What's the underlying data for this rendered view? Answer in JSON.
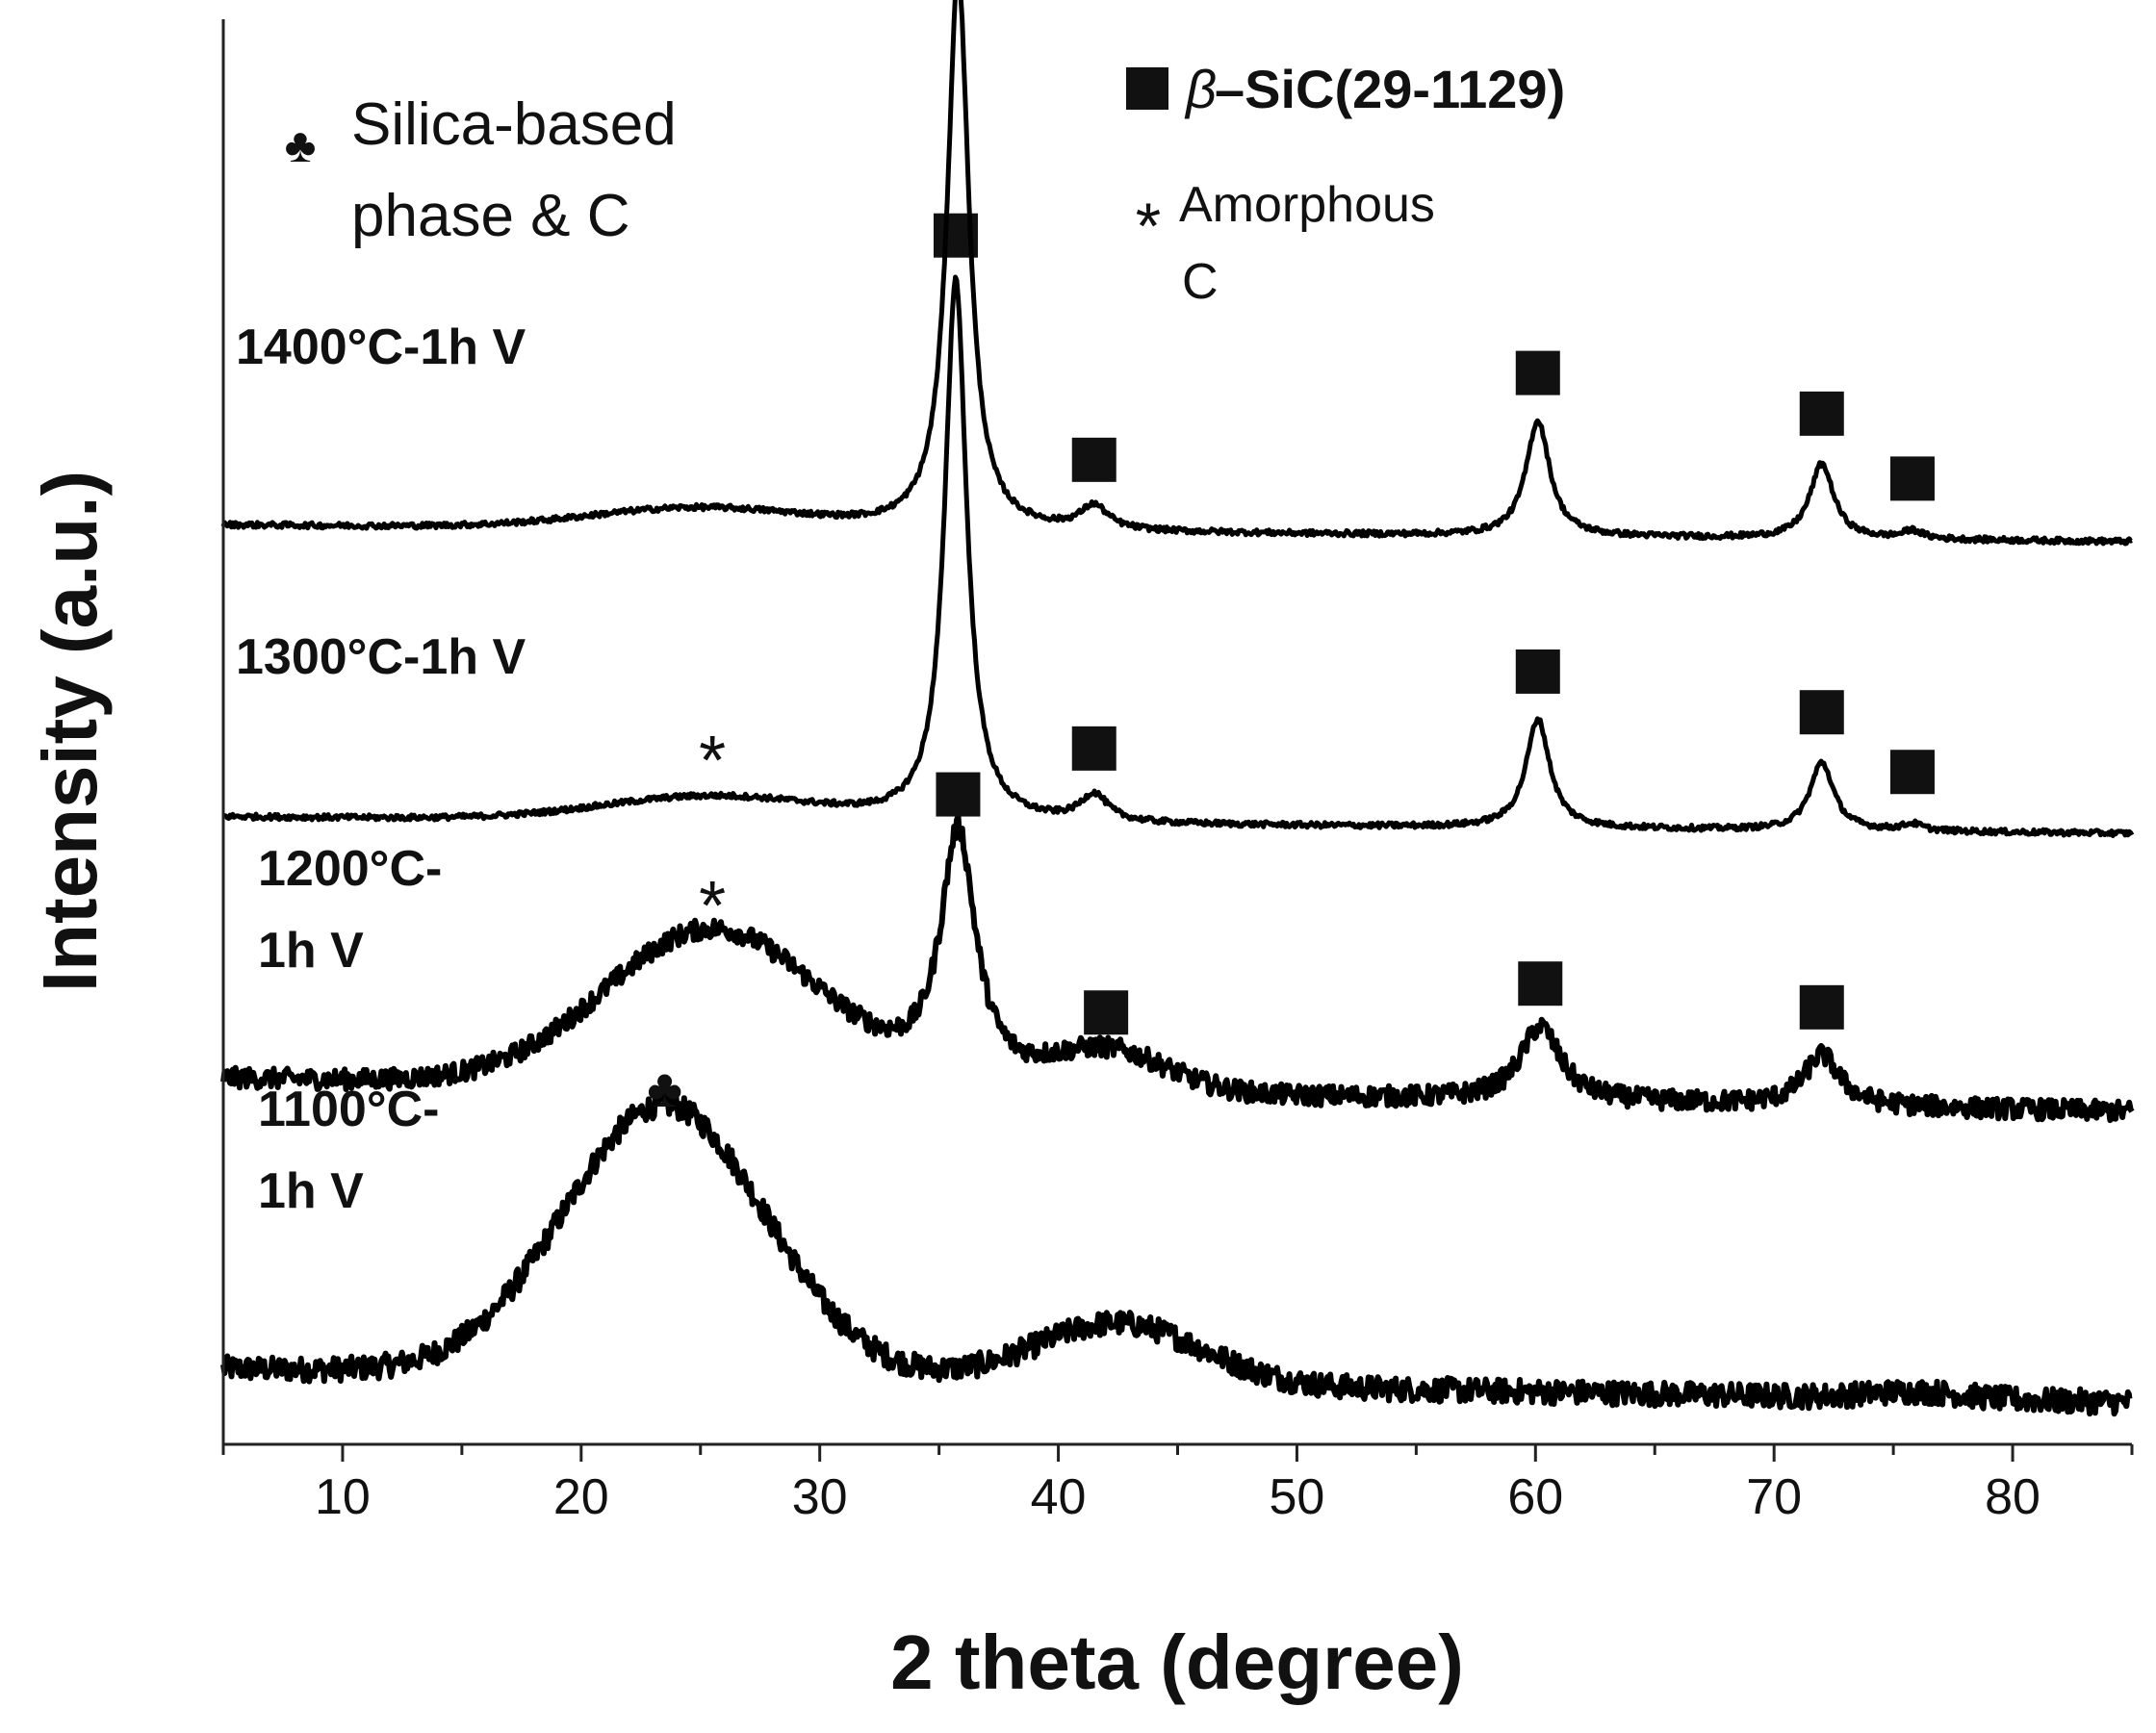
{
  "chart_data": {
    "type": "line",
    "title": "",
    "xlabel": "2 theta (degree)",
    "ylabel": "Intensity (a.u.)",
    "xlim": [
      5,
      85
    ],
    "ylim": [
      0,
      21
    ],
    "xticks": [
      10,
      20,
      30,
      40,
      50,
      60,
      70,
      80
    ],
    "yticks_shown": false,
    "legend": {
      "sic": {
        "symbol": "■",
        "greek": "β",
        "text": "–SiC(29-1129)"
      },
      "silica": {
        "symbol": "♣",
        "line1": "Silica-based",
        "line2": "phase & C"
      },
      "amorphous": {
        "symbol": "*",
        "line1": "Amorphous",
        "line2": "C"
      }
    },
    "series": [
      {
        "name": "1100°C-1h V",
        "label_line1": "1100°C-",
        "label_line2": "1h V",
        "baseline": 0.62,
        "noise": 0.18,
        "peaks": [
          {
            "center": 23.5,
            "height": 4.0,
            "width": 4.2,
            "marker": "club"
          },
          {
            "center": 42.5,
            "height": 0.9,
            "width": 3.5
          },
          {
            "center": 76,
            "height": 0.1,
            "width": 2
          }
        ]
      },
      {
        "name": "1200°C-1h V",
        "label_line1": "1200°C-",
        "label_line2": "1h V",
        "baseline": 4.9,
        "noise": 0.15,
        "peaks": [
          {
            "center": 25.5,
            "height": 2.3,
            "width": 4.5,
            "marker": "asterisk"
          },
          {
            "center": 35.8,
            "height": 3.7,
            "width": 0.9,
            "marker": "square"
          },
          {
            "center": 42,
            "height": 0.6,
            "width": 2.5,
            "marker": "square"
          },
          {
            "center": 60.2,
            "height": 1.1,
            "width": 1.0,
            "marker": "square"
          },
          {
            "center": 72.0,
            "height": 0.75,
            "width": 0.9,
            "marker": "square"
          }
        ]
      },
      {
        "name": "1300°C-1h V",
        "label_line1": "1300°C-1h V",
        "label_line2": "",
        "baseline": 9.0,
        "noise": 0.04,
        "peaks": [
          {
            "center": 25.5,
            "height": 0.35,
            "width": 4.5,
            "marker": "asterisk"
          },
          {
            "center": 35.7,
            "height": 8.0,
            "width": 0.55,
            "marker": "square"
          },
          {
            "center": 41.5,
            "height": 0.4,
            "width": 0.7,
            "marker": "square"
          },
          {
            "center": 60.1,
            "height": 1.6,
            "width": 0.6,
            "marker": "square"
          },
          {
            "center": 72.0,
            "height": 1.0,
            "width": 0.6,
            "marker": "square"
          },
          {
            "center": 75.8,
            "height": 0.1,
            "width": 0.5,
            "marker": "square"
          }
        ]
      },
      {
        "name": "1400°C-1h V",
        "label_line1": "1400°C-1h V",
        "label_line2": "",
        "baseline": 13.3,
        "noise": 0.04,
        "peaks": [
          {
            "center": 25,
            "height": 0.3,
            "width": 4.5
          },
          {
            "center": 35.8,
            "height": 8.2,
            "width": 0.55,
            "marker": "square"
          },
          {
            "center": 41.5,
            "height": 0.35,
            "width": 0.7,
            "marker": "square"
          },
          {
            "center": 60.1,
            "height": 1.7,
            "width": 0.6,
            "marker": "square"
          },
          {
            "center": 72.0,
            "height": 1.1,
            "width": 0.6,
            "marker": "square"
          },
          {
            "center": 75.8,
            "height": 0.12,
            "width": 0.5,
            "marker": "square"
          }
        ]
      }
    ],
    "colors": {
      "line": "#000000",
      "axis": "#222222",
      "text": "#111111"
    }
  }
}
